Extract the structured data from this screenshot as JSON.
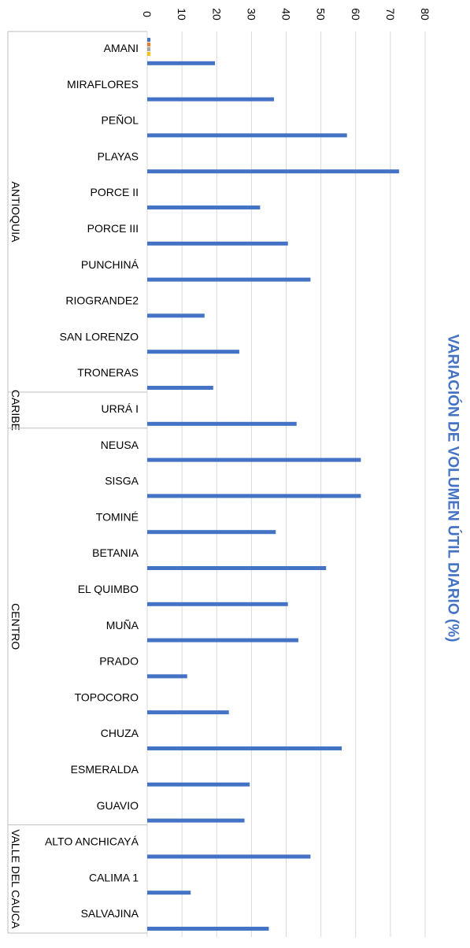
{
  "chart_data": {
    "type": "bar",
    "orientation": "horizontal",
    "title": "VARIACIÓN DE VOLUMEN ÚTIL DIARIO (%)",
    "xlim": [
      0,
      80
    ],
    "x_ticks": [
      0,
      10,
      20,
      30,
      40,
      50,
      60,
      70,
      80
    ],
    "grid": true,
    "legend": "none",
    "colors": {
      "bar": "#4472C4",
      "title": "#4472C4",
      "grid": "#d9d9d9",
      "axis_text": "#000000",
      "minor_marks": [
        "#4472C4",
        "#ED7D31",
        "#A5A5A5",
        "#FFC000"
      ]
    },
    "groups": [
      {
        "name": "ANTIOQUIA",
        "categories": [
          "AMANI",
          "MIRAFLORES",
          "PEÑOL",
          "PLAYAS",
          "PORCE II",
          "PORCE III",
          "PUNCHINÁ",
          "RIOGRANDE2",
          "SAN LORENZO",
          "TRONERAS"
        ]
      },
      {
        "name": "CARIBE",
        "categories": [
          "URRÁ I"
        ]
      },
      {
        "name": "CENTRO",
        "categories": [
          "NEUSA",
          "SISGA",
          "TOMINÉ",
          "BETANIA",
          "EL QUIMBO",
          "MUÑA",
          "PRADO",
          "TOPOCORO",
          "CHUZA",
          "ESMERALDA",
          "GUAVIO"
        ]
      },
      {
        "name": "VALLE DEL CAUCA",
        "categories": [
          "ALTO ANCHICAYÁ",
          "CALIMA 1",
          "SALVAJINA"
        ]
      }
    ],
    "categories": [
      "AMANI",
      "MIRAFLORES",
      "PEÑOL",
      "PLAYAS",
      "PORCE II",
      "PORCE III",
      "PUNCHINÁ",
      "RIOGRANDE2",
      "SAN LORENZO",
      "TRONERAS",
      "URRÁ I",
      "NEUSA",
      "SISGA",
      "TOMINÉ",
      "BETANIA",
      "EL QUIMBO",
      "MUÑA",
      "PRADO",
      "TOPOCORO",
      "CHUZA",
      "ESMERALDA",
      "GUAVIO",
      "ALTO ANCHICAYÁ",
      "CALIMA 1",
      "SALVAJINA"
    ],
    "values": [
      19.5,
      36.5,
      57.5,
      72.5,
      32.5,
      40.5,
      47,
      16.5,
      26.5,
      19,
      43,
      61.5,
      61.5,
      37,
      51.5,
      40.5,
      43.5,
      11.5,
      23.5,
      56,
      29.5,
      28,
      47,
      12.5,
      35
    ]
  }
}
